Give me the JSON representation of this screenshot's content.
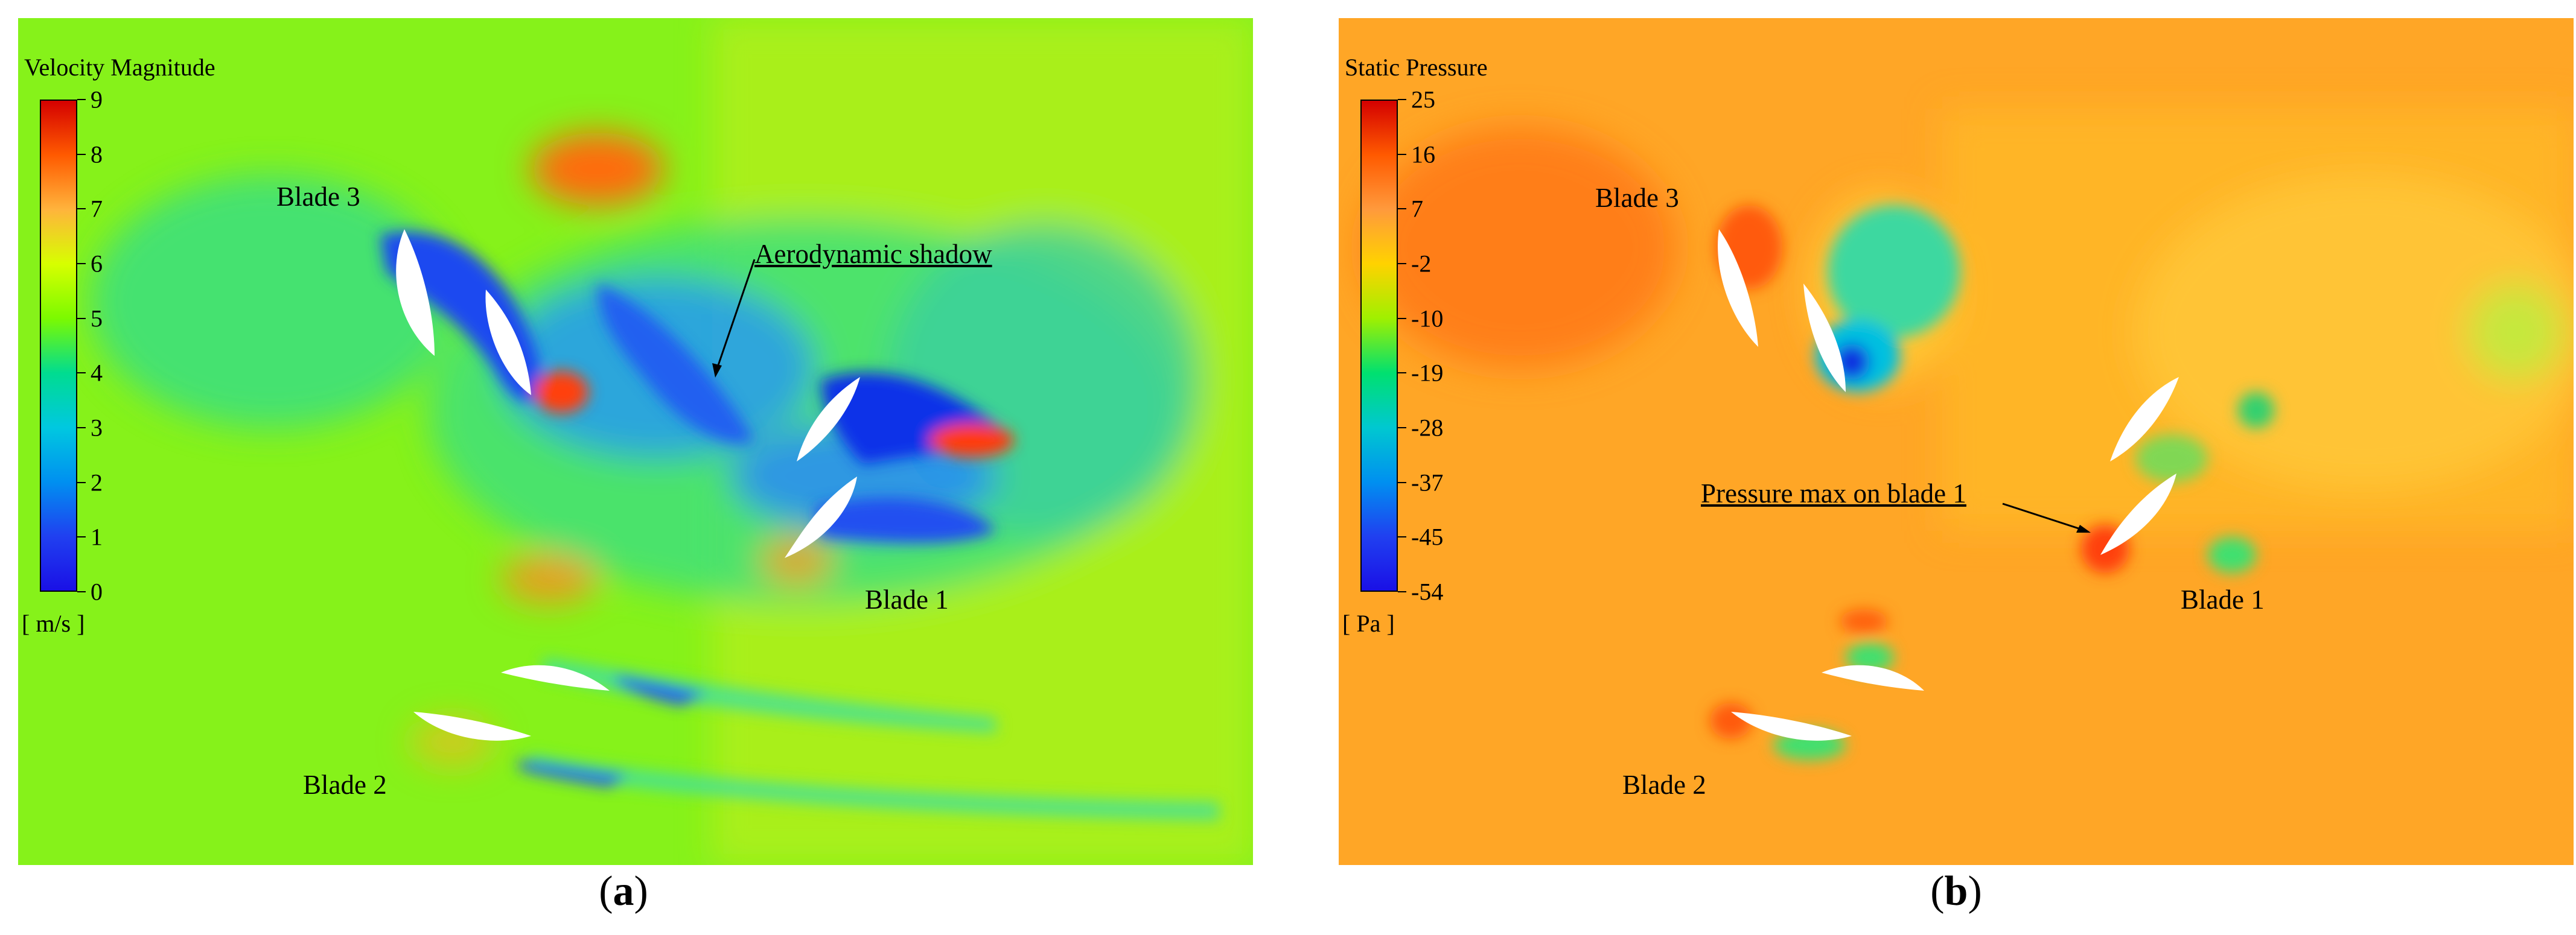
{
  "panels": [
    {
      "caption_open": "(",
      "caption_letter": "a",
      "caption_close": ")",
      "colorbar": {
        "title": "Velocity Magnitude",
        "ticks": [
          "9",
          "8",
          "7",
          "6",
          "5",
          "4",
          "3",
          "2",
          "1",
          "0"
        ],
        "unit": "[ m/s ]",
        "colors": [
          "#d40000",
          "#ff5a00",
          "#ffb43c",
          "#d7ff00",
          "#7cfa00",
          "#00dc90",
          "#00c8e0",
          "#0090f0",
          "#2040f0",
          "#1a10e6"
        ]
      },
      "blade_labels": [
        "Blade 3",
        "Blade 1",
        "Blade 2"
      ],
      "annotation": "Aerodynamic shadow"
    },
    {
      "caption_open": "(",
      "caption_letter": "b",
      "caption_close": ")",
      "colorbar": {
        "title": "Static Pressure",
        "ticks": [
          "25",
          "16",
          "7",
          "-2",
          "-10",
          "-19",
          "-28",
          "-37",
          "-45",
          "-54"
        ],
        "unit": "[ Pa ]",
        "colors": [
          "#d40000",
          "#ff5a00",
          "#ff9a3c",
          "#ffd200",
          "#a0f000",
          "#00e070",
          "#00c8d0",
          "#0090f0",
          "#2040f0",
          "#1a10e6"
        ]
      },
      "blade_labels": [
        "Blade 3",
        "Blade 1",
        "Blade 2"
      ],
      "annotation": "Pressure max on blade 1"
    }
  ]
}
